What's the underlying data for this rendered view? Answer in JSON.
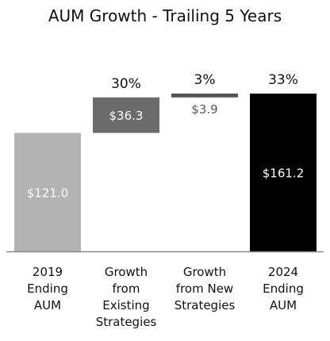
{
  "chart_data": {
    "type": "bar",
    "subtype": "waterfall",
    "title": "AUM Growth - Trailing 5 Years",
    "categories": [
      [
        "2019",
        "Ending",
        "AUM"
      ],
      [
        "Growth",
        "from",
        "Existing",
        "Strategies"
      ],
      [
        "Growth",
        "from New",
        "Strategies"
      ],
      [
        "2024",
        "Ending",
        "AUM"
      ]
    ],
    "bars": [
      {
        "kind": "total",
        "start": 0,
        "end": 121.0,
        "value_label": "$121.0",
        "pct_label": "",
        "color": "#b3b3b3",
        "label_color": "#ffffff",
        "label_position": "inside"
      },
      {
        "kind": "delta",
        "start": 121.0,
        "end": 157.3,
        "value_label": "$36.3",
        "pct_label": "30%",
        "color": "#6b6b6b",
        "label_color": "#ffffff",
        "label_position": "inside"
      },
      {
        "kind": "delta",
        "start": 157.3,
        "end": 161.2,
        "value_label": "$3.9",
        "pct_label": "3%",
        "color": "#555555",
        "label_color": "#555555",
        "label_position": "below"
      },
      {
        "kind": "total",
        "start": 0,
        "end": 161.2,
        "value_label": "$161.2",
        "pct_label": "33%",
        "color": "#000000",
        "label_color": "#ffffff",
        "label_position": "inside"
      }
    ],
    "ylim": [
      0,
      161.2
    ],
    "grid": false,
    "legend": "none",
    "axis_line_color": "#888888"
  }
}
